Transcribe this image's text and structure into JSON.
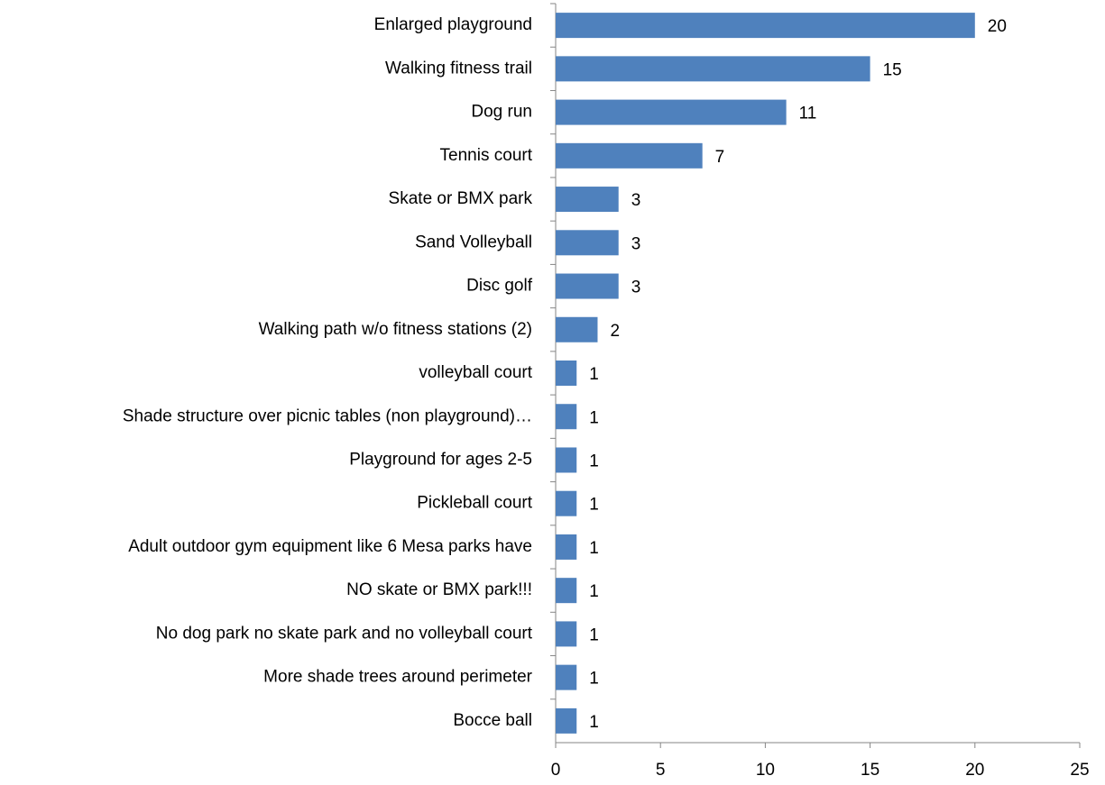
{
  "chart_data": {
    "type": "bar",
    "horizontal": true,
    "categories": [
      "Enlarged playground",
      "Walking fitness trail",
      "Dog run",
      "Tennis court",
      "Skate or BMX park",
      "Sand Volleyball",
      "Disc golf",
      "Walking path w/o fitness stations (2)",
      "volleyball court",
      "Shade structure over picnic tables (non playground)…",
      "Playground for ages 2-5",
      "Pickleball court",
      "Adult outdoor gym equipment like 6 Mesa parks have",
      "NO skate or BMX park!!!",
      "No dog park no skate park and no volleyball court",
      "More shade trees around perimeter",
      "Bocce ball"
    ],
    "values": [
      20,
      15,
      11,
      7,
      3,
      3,
      3,
      2,
      1,
      1,
      1,
      1,
      1,
      1,
      1,
      1,
      1
    ],
    "color": "#4f81bd",
    "xlim": [
      0,
      25
    ],
    "xticks": [
      0,
      5,
      10,
      15,
      20,
      25
    ],
    "grid": false
  }
}
